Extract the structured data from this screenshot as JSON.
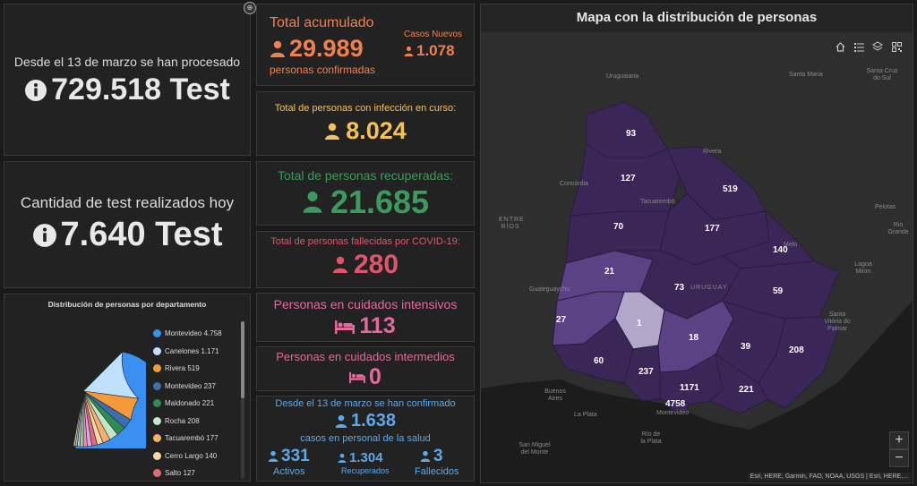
{
  "processed_test": {
    "text": "Desde el 13 de marzo se han procesado",
    "value": "729.518 Test"
  },
  "today_test": {
    "text": "Cantidad de test realizados hoy",
    "value": "7.640 Test"
  },
  "total": {
    "title": "Total acumulado",
    "value": "29.989",
    "sub": "personas confirmadas",
    "new_label": "Casos Nuevos",
    "new_value": "1.078"
  },
  "active": {
    "title": "Total de personas con infección en curso:",
    "value": "8.024"
  },
  "recovered": {
    "title": "Total de personas recuperadas:",
    "value": "21.685"
  },
  "deceased": {
    "title": "Total de personas fallecidas por COVID-19:",
    "value": "280"
  },
  "icu": {
    "title": "Personas en cuidados intensivos",
    "value": "113"
  },
  "intermediate": {
    "title": "Personas en cuidados intermedios",
    "value": "0"
  },
  "health": {
    "title": "Desde el 13 de marzo se han confirmado",
    "value": "1.638",
    "sub": "casos en personal de la salud",
    "activos_value": "331",
    "activos_label": "Activos",
    "recuperados_value": "1.304",
    "recuperados_label": "Recuperados",
    "fallecidos_value": "3",
    "fallecidos_label": "Fallecidos"
  },
  "colors": {
    "orange": "#f0804f",
    "yellow": "#f5c25a",
    "green": "#3c9a5f",
    "red": "#e0556c",
    "pink": "#e46a9e",
    "blue": "#5fa8e8",
    "map_dark": "#3a2757",
    "map_mid": "#5a4285",
    "map_light": "#b2a7c8"
  },
  "map": {
    "title": "Mapa con la distribución de personas",
    "attribution": "Esri, HERE, Garmin, FAO, NOAA, USGS | Esri, HERE,...",
    "zoom_in": "+",
    "zoom_out": "−",
    "values": [
      "93",
      "127",
      "519",
      "70",
      "177",
      "140",
      "21",
      "73",
      "59",
      "27",
      "1",
      "18",
      "39",
      "208",
      "60",
      "237",
      "1171",
      "221",
      "4758"
    ],
    "places": [
      "Uruguaiana",
      "Santa Maria",
      "Santa Cruz do Sul",
      "Concórdia",
      "Rivera",
      "Tacuarembó",
      "ENTRE RÍOS",
      "Gualeguaychú",
      "URUGUAY",
      "Melo",
      "Pelotas",
      "Rio Grande",
      "Lagoa Mirim",
      "Santa Vitória do Palmar",
      "Buenos Aires",
      "La Plata",
      "Montevideo",
      "Río de la Plata",
      "San Miguel del Monte"
    ]
  },
  "pie": {
    "title": "Distribución de personas por departamento",
    "items": [
      {
        "label": "Montevideo 4.758",
        "color": "#3a8ff0"
      },
      {
        "label": "Canelones 1.171",
        "color": "#bfe0ff"
      },
      {
        "label": "Rivera 519",
        "color": "#f59a3a"
      },
      {
        "label": "Montevideo 237",
        "color": "#3d6fb0"
      },
      {
        "label": "Maldonado 221",
        "color": "#2e8b57"
      },
      {
        "label": "Rocha 208",
        "color": "#bfe8c8"
      },
      {
        "label": "Tacuarembó 177",
        "color": "#f5b070"
      },
      {
        "label": "Cerro Largo 140",
        "color": "#f7d6a8"
      },
      {
        "label": "Salto 127",
        "color": "#e06a7a"
      }
    ]
  },
  "chart_data": {
    "type": "pie",
    "title": "Distribución de personas por departamento",
    "categories": [
      "Montevideo",
      "Canelones",
      "Rivera",
      "Montevideo",
      "Maldonado",
      "Rocha",
      "Tacuarembó",
      "Cerro Largo",
      "Salto"
    ],
    "values": [
      4758,
      1171,
      519,
      237,
      221,
      208,
      177,
      140,
      127
    ]
  }
}
